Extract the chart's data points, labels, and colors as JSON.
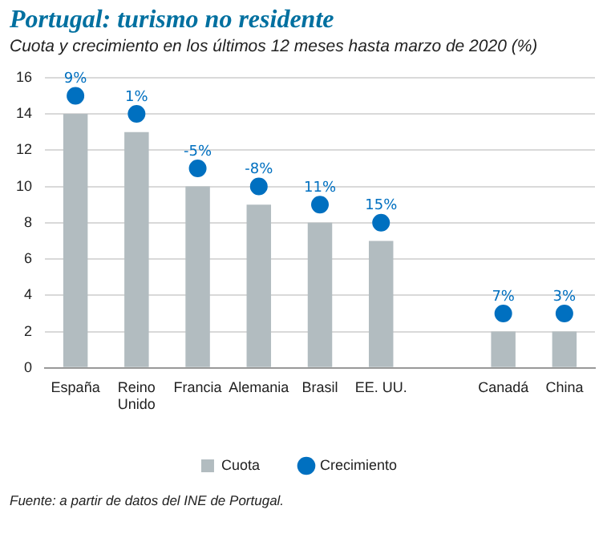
{
  "chart_data": {
    "type": "bar",
    "title": "Portugal: turismo no residente",
    "subtitle": "Cuota y crecimiento en los últimos 12 meses hasta marzo de 2020 (%)",
    "categories": [
      "España",
      "Reino Unido",
      "Francia",
      "Alemania",
      "Brasil",
      "EE. UU.",
      null,
      "Canadá",
      "China"
    ],
    "series": [
      {
        "name": "Cuota",
        "color": "#b2bcc0",
        "values": [
          14,
          13,
          10,
          9,
          8,
          7,
          null,
          2,
          2
        ]
      },
      {
        "name": "Crecimiento",
        "type": "scatter",
        "color": "#0070c0",
        "values": [
          15,
          14,
          11,
          10,
          9,
          8,
          null,
          3,
          3
        ]
      }
    ],
    "ylim": [
      0,
      16
    ],
    "yticks": [
      0,
      2,
      4,
      6,
      8,
      10,
      12,
      14,
      16
    ],
    "grid": "y",
    "legend": "bottom",
    "marker": "circle",
    "annotations": [
      {
        "text": "9%",
        "x": "España",
        "y": 15
      },
      {
        "text": "1%",
        "x": "Reino Unido",
        "y": 14
      },
      {
        "text": "-5%",
        "x": "Francia",
        "y": 11
      },
      {
        "text": "-8%",
        "x": "Alemania",
        "y": 10
      },
      {
        "text": "11%",
        "x": "Brasil",
        "y": 9
      },
      {
        "text": "15%",
        "x": "EE. UU.",
        "y": 8
      },
      {
        "text": "7%",
        "x": "Canadá",
        "y": 3
      },
      {
        "text": "3%",
        "x": "China",
        "y": 3
      },
      "Fuente: a partir de datos del INE de Portugal."
    ]
  }
}
